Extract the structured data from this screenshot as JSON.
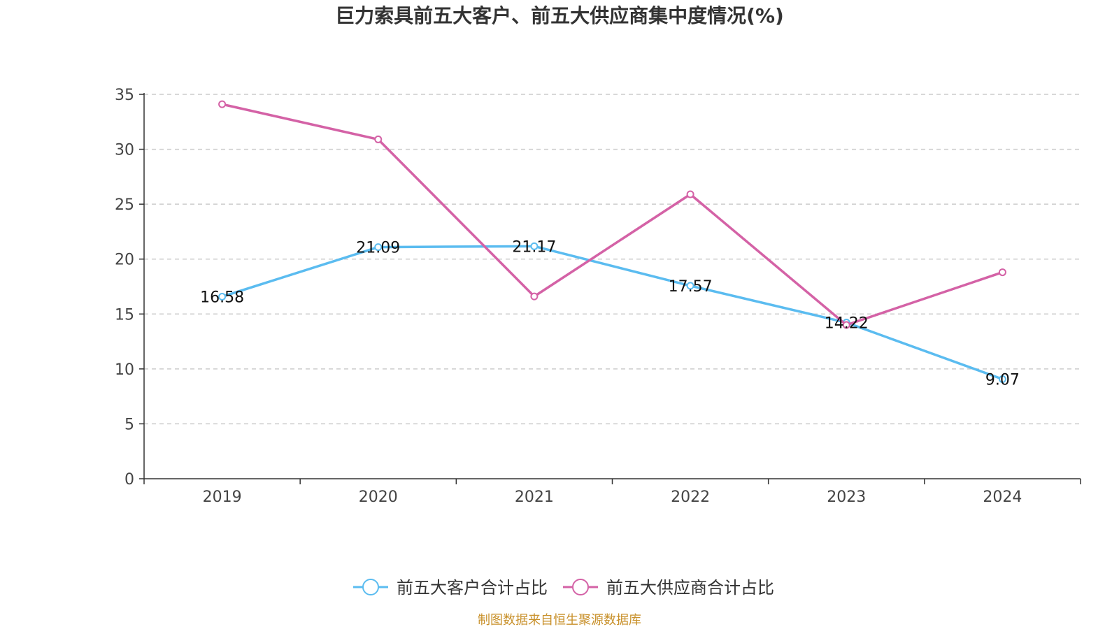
{
  "chart_data": {
    "type": "line",
    "title": "巨力索具前五大客户、前五大供应商集中度情况(%)",
    "xlabel": "",
    "ylabel": "",
    "categories": [
      "2019",
      "2020",
      "2021",
      "2022",
      "2023",
      "2024"
    ],
    "ylim": [
      0,
      35
    ],
    "yticks": [
      0,
      5,
      10,
      15,
      20,
      25,
      30,
      35
    ],
    "grid": true,
    "legend_position": "bottom",
    "series": [
      {
        "name": "前五大客户合计占比",
        "values": [
          16.58,
          21.09,
          21.17,
          17.57,
          14.22,
          9.07
        ],
        "labels": [
          "16.58",
          "21.09",
          "21.17",
          "17.57",
          "14.22",
          "9.07"
        ],
        "color": "#5bbcf0"
      },
      {
        "name": "前五大供应商合计占比",
        "values": [
          34.1,
          30.9,
          16.6,
          25.9,
          14.0,
          18.8
        ],
        "color": "#d462a6"
      }
    ]
  },
  "source": {
    "text": "制图数据来自恒生聚源数据库",
    "color": "#c8902a"
  }
}
